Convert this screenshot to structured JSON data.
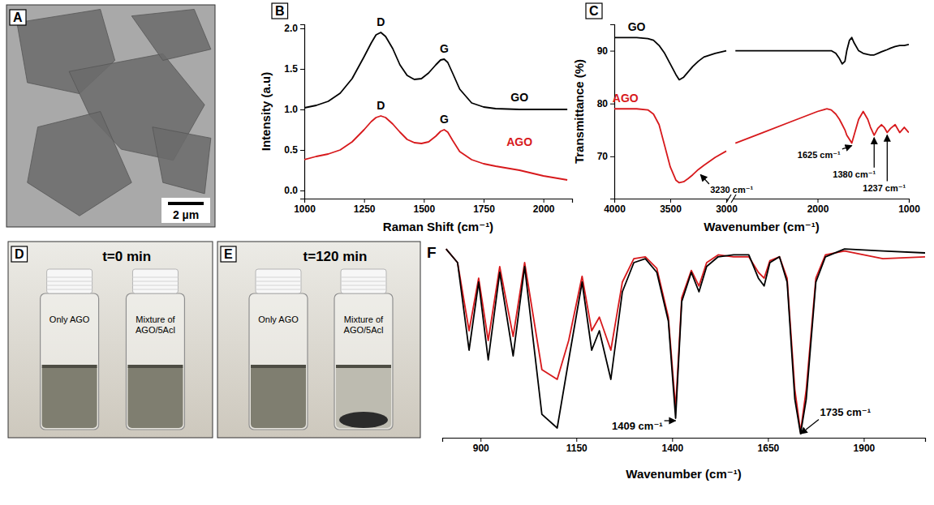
{
  "chart_data": [
    {
      "panel": "A",
      "type": "image",
      "scale_bar": "2 µm"
    },
    {
      "panel": "B",
      "type": "line",
      "x_label": "Raman Shift (cm⁻¹)",
      "y_label": "Intensity (a.u)",
      "x": [
        1000,
        1050,
        1100,
        1150,
        1200,
        1250,
        1280,
        1300,
        1320,
        1340,
        1370,
        1400,
        1430,
        1460,
        1490,
        1520,
        1550,
        1570,
        1585,
        1600,
        1620,
        1650,
        1700,
        1750,
        1800,
        1900,
        2000,
        2100
      ],
      "series": [
        {
          "name": "GO",
          "color": "#000000",
          "values": [
            1.02,
            1.05,
            1.1,
            1.2,
            1.38,
            1.65,
            1.82,
            1.92,
            1.95,
            1.9,
            1.75,
            1.55,
            1.42,
            1.37,
            1.38,
            1.45,
            1.55,
            1.61,
            1.62,
            1.58,
            1.45,
            1.25,
            1.08,
            1.03,
            1.01,
            1.0,
            1.0,
            1.0
          ]
        },
        {
          "name": "AGO",
          "color": "#d7191c",
          "values": [
            0.38,
            0.42,
            0.45,
            0.5,
            0.6,
            0.75,
            0.85,
            0.9,
            0.92,
            0.9,
            0.82,
            0.72,
            0.63,
            0.59,
            0.58,
            0.6,
            0.67,
            0.73,
            0.75,
            0.72,
            0.62,
            0.48,
            0.38,
            0.33,
            0.3,
            0.25,
            0.18,
            0.13
          ]
        }
      ],
      "xlim": [
        1000,
        2120
      ],
      "xticks": [
        1000,
        1250,
        1500,
        1750,
        2000
      ],
      "ylim": [
        -0.1,
        2.05
      ],
      "yticks": [
        {
          "value": 0,
          "label": "0.0"
        },
        {
          "value": 0.5,
          "label": "0.5"
        },
        {
          "value": 1,
          "label": "1.0"
        },
        {
          "value": 1.5,
          "label": "1.5"
        },
        {
          "value": 2,
          "label": "2.0"
        }
      ],
      "annotations": [
        {
          "text": "D",
          "x": 1320,
          "y": 1.95
        },
        {
          "text": "G",
          "x": 1585,
          "y": 1.62
        },
        {
          "text": "D",
          "x": 1320,
          "y": 0.92
        },
        {
          "text": "G",
          "x": 1585,
          "y": 0.75
        }
      ]
    },
    {
      "panel": "C",
      "type": "line",
      "x_label": "Wavenumber (cm⁻¹)",
      "y_label": "Transmittance (%)",
      "x": [
        4000,
        3900,
        3800,
        3700,
        3650,
        3600,
        3550,
        3500,
        3450,
        3420,
        3380,
        3340,
        3300,
        3250,
        3200,
        3100,
        3000,
        2950,
        2900,
        2600,
        2300,
        2000,
        1900,
        1850,
        1800,
        1760,
        1730,
        1700,
        1680,
        1650,
        1625,
        1600,
        1550,
        1500,
        1450,
        1420,
        1380,
        1340,
        1300,
        1270,
        1237,
        1200,
        1150,
        1100,
        1050,
        1000
      ],
      "series": [
        {
          "name": "GO",
          "color": "#000000",
          "values": [
            92.5,
            92.5,
            92.5,
            92.3,
            92,
            91,
            89.5,
            87.5,
            85.5,
            84.5,
            85,
            86,
            87,
            88,
            88.8,
            89.5,
            90,
            null,
            90,
            90,
            90,
            90,
            90,
            90,
            89.5,
            88.5,
            87.5,
            88,
            90,
            92,
            92.5,
            91.5,
            90,
            89.5,
            89.3,
            89.2,
            89.2,
            89.5,
            89.8,
            90,
            90.2,
            90.5,
            90.8,
            91,
            91,
            91.2
          ]
        },
        {
          "name": "AGO",
          "color": "#d7191c",
          "values": [
            79,
            79,
            79,
            78.8,
            78,
            76,
            72,
            68,
            65.5,
            65,
            65.2,
            65.8,
            66.5,
            67.5,
            68.3,
            69.8,
            71,
            null,
            72.5,
            74.5,
            76.5,
            78.5,
            79,
            78.8,
            78,
            77,
            76,
            75,
            74,
            73.2,
            72.5,
            74,
            77,
            78.5,
            77,
            75.5,
            74,
            75.3,
            76,
            75.5,
            74.5,
            75.3,
            76,
            74.5,
            75.5,
            74.5
          ]
        }
      ],
      "xlim": [
        4000,
        1000
      ],
      "x_break": 3000,
      "xticks": [
        4000,
        3500,
        3000,
        2000,
        1000
      ],
      "ylim": [
        62,
        95
      ],
      "yticks": [
        70,
        80,
        90
      ],
      "annotations": [
        {
          "text": "3230 cm⁻¹",
          "x": 3230,
          "y": 67
        },
        {
          "text": "1625 cm⁻¹",
          "x": 1625,
          "y": 72.5
        },
        {
          "text": "1380 cm⁻¹",
          "x": 1380,
          "y": 74
        },
        {
          "text": "1237 cm⁻¹",
          "x": 1237,
          "y": 74.5
        }
      ]
    },
    {
      "panel": "D",
      "type": "image",
      "title": "t=0 min",
      "labels": [
        "Only AGO",
        "Mixture of AGO/5Acl"
      ]
    },
    {
      "panel": "E",
      "type": "image",
      "title": "t=120 min",
      "labels": [
        "Only AGO",
        "Mixture of AGO/5Acl"
      ]
    },
    {
      "panel": "F",
      "type": "line",
      "x_label": "Wavenumber (cm⁻¹)",
      "x": [
        810,
        840,
        870,
        895,
        920,
        950,
        985,
        1015,
        1060,
        1100,
        1130,
        1165,
        1190,
        1210,
        1240,
        1270,
        1300,
        1330,
        1360,
        1390,
        1409,
        1425,
        1450,
        1470,
        1490,
        1520,
        1560,
        1600,
        1625,
        1640,
        1655,
        1680,
        1700,
        1720,
        1735,
        1750,
        1775,
        1800,
        1850,
        1950,
        2060
      ],
      "series": [
        {
          "color": "#d7191c",
          "values": [
            97,
            90,
            55,
            82,
            50,
            88,
            52,
            90,
            35,
            30,
            50,
            83,
            55,
            62,
            45,
            80,
            92,
            93,
            87,
            62,
            15,
            72,
            86,
            78,
            90,
            94,
            93,
            93,
            85,
            82,
            91,
            93,
            82,
            25,
            3,
            25,
            82,
            94,
            96,
            92,
            93
          ]
        },
        {
          "color": "#000000",
          "values": [
            97,
            90,
            45,
            80,
            40,
            85,
            42,
            88,
            12,
            5,
            40,
            80,
            45,
            55,
            30,
            75,
            90,
            92,
            85,
            60,
            10,
            70,
            85,
            75,
            88,
            93,
            94,
            94,
            82,
            78,
            90,
            93,
            80,
            20,
            2,
            20,
            80,
            93,
            97,
            96,
            95
          ]
        }
      ],
      "xlim": [
        800,
        2060
      ],
      "xticks": [
        900,
        1150,
        1400,
        1650,
        1900
      ],
      "ylim": [
        0,
        100
      ],
      "tick_labels": "x",
      "annotations": [
        {
          "text": "1409 cm⁻¹",
          "x": 1409,
          "y": 10
        },
        {
          "text": "1735 cm⁻¹",
          "x": 1735,
          "y": 2
        }
      ]
    }
  ]
}
